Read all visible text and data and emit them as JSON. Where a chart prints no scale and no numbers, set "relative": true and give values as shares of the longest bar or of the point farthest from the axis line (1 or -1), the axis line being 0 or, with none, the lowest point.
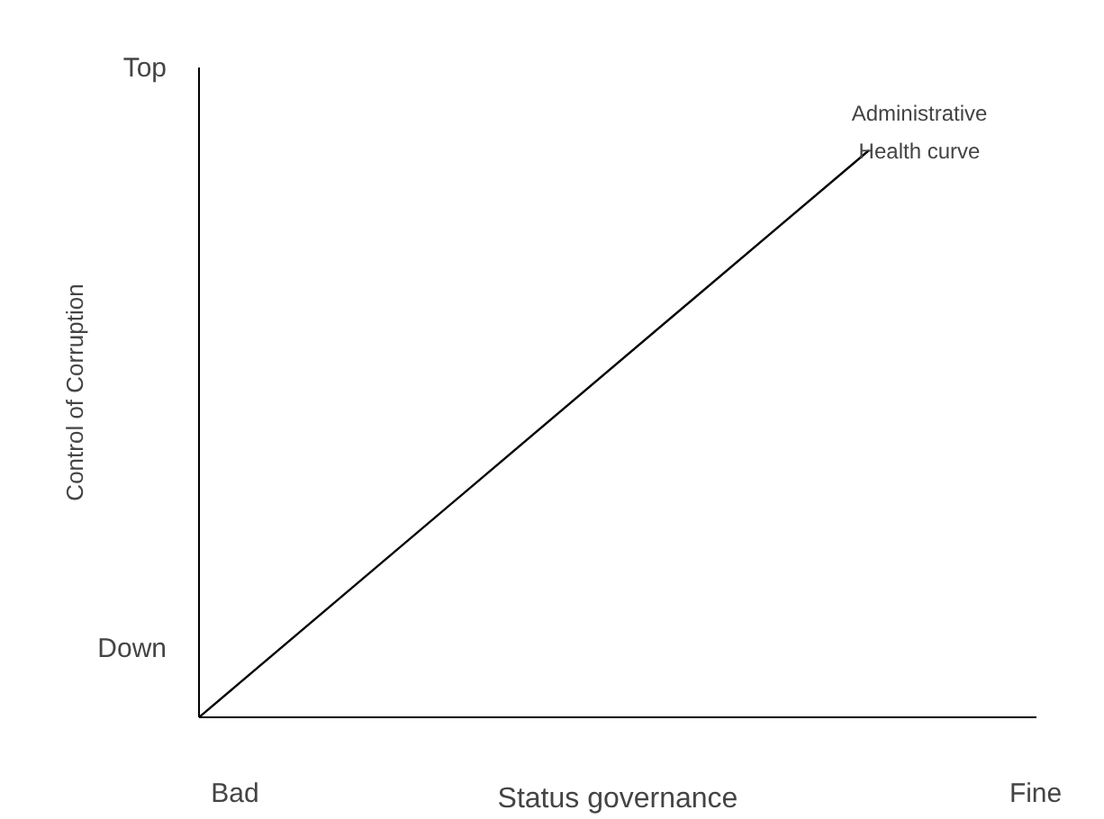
{
  "chart_data": {
    "type": "line",
    "relative": true,
    "xlabel": "Status governance",
    "ylabel": "Control of Corruption",
    "categories": [
      null,
      null
    ],
    "series": [
      {
        "color": "#000000",
        "values": [
          0,
          1
        ]
      }
    ],
    "annotations": [
      "Top",
      "Down",
      "Bad",
      "Fine",
      "Administrative\nHealth curve"
    ],
    "grid": false
  }
}
